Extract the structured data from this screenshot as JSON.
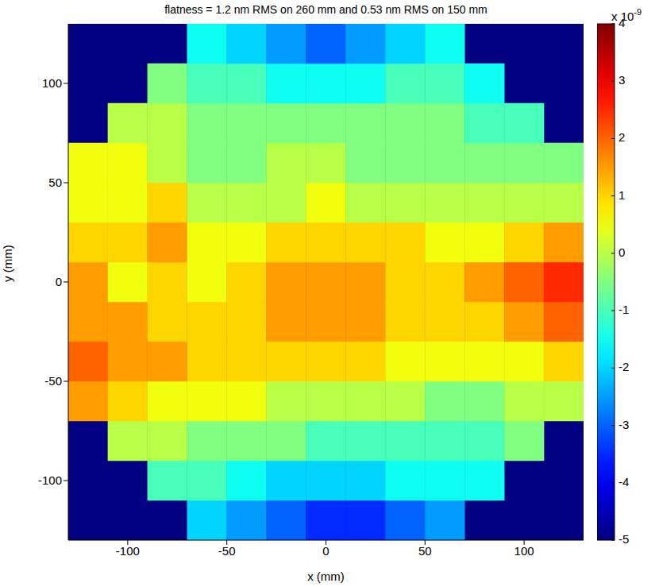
{
  "chart_data": {
    "type": "heatmap",
    "title": "flatness = 1.2 nm RMS on 260 mm and 0.53 nm RMS on 150 mm",
    "x_label": "x (mm)",
    "y_label": "y (mm)",
    "xlim": [
      -130,
      130
    ],
    "ylim": [
      -130,
      130
    ],
    "xticks": [
      -100,
      -50,
      0,
      50,
      100
    ],
    "yticks": [
      -100,
      -50,
      0,
      50,
      100
    ],
    "grid": false,
    "x_bins": [
      -130,
      -110,
      -90,
      -70,
      -50,
      -30,
      -10,
      10,
      30,
      50,
      70,
      90,
      110,
      130
    ],
    "y_bins": [
      -130,
      -110,
      -90,
      -70,
      -50,
      -30,
      -10,
      10,
      30,
      50,
      70,
      90,
      110,
      130
    ],
    "cells": [
      [
        null,
        null,
        null,
        -2,
        -2.5,
        -3,
        -3.5,
        -3.5,
        -3,
        -2.5,
        null,
        null,
        null
      ],
      [
        null,
        null,
        -1,
        -1,
        -1.5,
        -2,
        -2,
        -2,
        -1.5,
        -1.5,
        -1.5,
        null,
        null
      ],
      [
        null,
        0,
        0,
        -0.5,
        -0.5,
        -0.5,
        -1,
        -1,
        -1,
        -1,
        -1,
        -0.5,
        null
      ],
      [
        1.5,
        1,
        0.5,
        0.5,
        0.5,
        0,
        0,
        0,
        0,
        -0.5,
        -0.5,
        0,
        0
      ],
      [
        2,
        1.5,
        1.5,
        1,
        1,
        1,
        1,
        1,
        0.5,
        0.5,
        0.5,
        0.5,
        1
      ],
      [
        1.5,
        1.5,
        1,
        1,
        1,
        1.5,
        1.5,
        1.5,
        1,
        1,
        1,
        1.5,
        2
      ],
      [
        1.5,
        0.5,
        1,
        0.5,
        1,
        1.5,
        1.5,
        1.5,
        1,
        1,
        1.5,
        2,
        2.5
      ],
      [
        1,
        1,
        1.5,
        0.5,
        0.5,
        1,
        1,
        1,
        1,
        0.5,
        0.5,
        1,
        1.5
      ],
      [
        0.5,
        0.5,
        1,
        0,
        0,
        0,
        0.5,
        0,
        0,
        0,
        0,
        0,
        0
      ],
      [
        0.5,
        0.5,
        0,
        -0.5,
        -0.5,
        0,
        0,
        -0.5,
        -0.5,
        -0.5,
        -0.5,
        -0.5,
        -0.5
      ],
      [
        null,
        0,
        0,
        -0.5,
        -0.5,
        -0.5,
        -0.5,
        -0.5,
        -0.5,
        -0.5,
        -1,
        -1,
        null
      ],
      [
        null,
        null,
        -0.5,
        -1,
        -1,
        -1.5,
        -1.5,
        -1.5,
        -1,
        -1,
        -1.5,
        null,
        null
      ],
      [
        null,
        null,
        null,
        -1.5,
        -2,
        -2.5,
        -3,
        -2.5,
        -2,
        -1.5,
        null,
        null,
        null
      ]
    ],
    "colorbar": {
      "range": [
        -5,
        4
      ],
      "ticks": [
        -5,
        -4,
        -3,
        -2,
        -1,
        0,
        1,
        2,
        3,
        4
      ],
      "scale_label": "x 10",
      "scale_exponent": "-9"
    }
  }
}
